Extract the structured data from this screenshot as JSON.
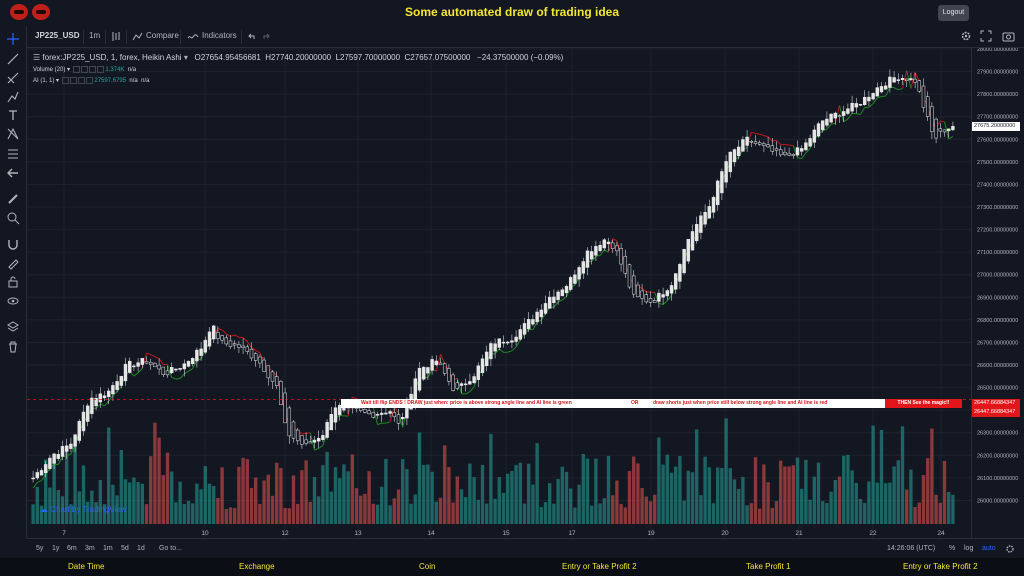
{
  "app": {
    "title": "Some automated draw of trading idea",
    "logout_label": "Logout"
  },
  "toolbar": {
    "symbol": "JP225_USD",
    "interval": "1m",
    "compare_label": "Compare",
    "indicators_label": "Indicators"
  },
  "legend": {
    "main": "forex:JP225_USD, 1, forex, Heikin Ashi",
    "open": "O27654.95456681",
    "high": "H27740.20000000",
    "low": "L27597.70000000",
    "close": "C27657.07500000",
    "change": "−24.37500000 (−0.09%)",
    "volume_label": "Volume (20)",
    "volume_value": "1.374K",
    "volume_na": "n/a",
    "ai_label": "AI (1, 1)",
    "ai_value": "27597.6795",
    "ai_na1": "n/a",
    "ai_na2": "n/a"
  },
  "banner": {
    "part1": "Wait till flip ENDS !  DRAW just when:  price is above strong angle line and AI line is green",
    "part2": "OR",
    "part3": "draw shorts just when price still below strong angle line and AI line is red",
    "part4": "THEN See the magic!!"
  },
  "price_tags": {
    "current": "27675.20000000",
    "line1": "26447.66884347",
    "line2": "26447.66884347"
  },
  "watermark": "Chart by TradingView",
  "bottom": {
    "ranges": [
      "5y",
      "1y",
      "6m",
      "3m",
      "1m",
      "5d",
      "1d"
    ],
    "goto": "Go to...",
    "time": "14:26:06 (UTC)",
    "pct": "%",
    "log": "log",
    "auto": "auto"
  },
  "footer": [
    "Date Time",
    "Exchange",
    "Coin",
    "Entry or Take Profit 2",
    "Take Profit 1",
    "Entry or Take Profit 2"
  ],
  "colors": {
    "up": "#26a69a",
    "down": "#ef5350",
    "ai_green": "#1e8a22",
    "ai_red": "#c0181e",
    "title_yellow": "#f5e633"
  },
  "chart_data": {
    "type": "candlestick",
    "chart_style": "Heikin Ashi",
    "ylim": [
      25940,
      28000
    ],
    "y_ticks": [
      26000,
      26100,
      26200,
      26300,
      26400,
      26500,
      26600,
      26700,
      26800,
      26900,
      27000,
      27100,
      27200,
      27300,
      27400,
      27500,
      27600,
      27700,
      27800,
      27900,
      28000
    ],
    "y_tick_labels": [
      "26000.00000000",
      "26100.00000000",
      "26200.00000000",
      "26300.00000000",
      "26400.00000000",
      "26500.00000000",
      "26600.00000000",
      "26700.00000000",
      "26800.00000000",
      "26900.00000000",
      "27000.00000000",
      "27100.00000000",
      "27200.00000000",
      "27300.00000000",
      "27400.00000000",
      "27500.00000000",
      "27600.00000000",
      "27700.00000000",
      "27800.00000000",
      "27900.00000000",
      "28000.00000000"
    ],
    "x_tick_labels": [
      "7",
      "10",
      "12",
      "13",
      "14",
      "15",
      "17",
      "19",
      "20",
      "21",
      "22",
      "24"
    ],
    "price_path": [
      [
        0,
        26100
      ],
      [
        2,
        26200
      ],
      [
        4,
        26250
      ],
      [
        6,
        26450
      ],
      [
        8,
        26480
      ],
      [
        10,
        26600
      ],
      [
        12,
        26620
      ],
      [
        14,
        26560
      ],
      [
        16,
        26600
      ],
      [
        18,
        26680
      ],
      [
        19,
        26780
      ],
      [
        20,
        26700
      ],
      [
        22,
        26680
      ],
      [
        24,
        26620
      ],
      [
        26,
        26500
      ],
      [
        27,
        26300
      ],
      [
        29,
        26240
      ],
      [
        31,
        26300
      ],
      [
        32,
        26420
      ],
      [
        34,
        26400
      ],
      [
        36,
        26380
      ],
      [
        38,
        26400
      ],
      [
        39,
        26330
      ],
      [
        40,
        26450
      ],
      [
        41,
        26580
      ],
      [
        43,
        26620
      ],
      [
        45,
        26480
      ],
      [
        47,
        26560
      ],
      [
        49,
        26700
      ],
      [
        51,
        26720
      ],
      [
        53,
        26800
      ],
      [
        55,
        26900
      ],
      [
        57,
        26960
      ],
      [
        59,
        27100
      ],
      [
        61,
        27160
      ],
      [
        62,
        27120
      ],
      [
        64,
        26900
      ],
      [
        66,
        26880
      ],
      [
        68,
        26960
      ],
      [
        70,
        27180
      ],
      [
        72,
        27300
      ],
      [
        74,
        27520
      ],
      [
        76,
        27600
      ],
      [
        78,
        27560
      ],
      [
        80,
        27520
      ],
      [
        82,
        27560
      ],
      [
        84,
        27680
      ],
      [
        86,
        27720
      ],
      [
        88,
        27760
      ],
      [
        90,
        27830
      ],
      [
        92,
        27880
      ],
      [
        94,
        27860
      ],
      [
        96,
        27600
      ],
      [
        97,
        27640
      ],
      [
        98,
        27660
      ]
    ],
    "signal_level": 26447.66884347,
    "current_price": 27675.2
  }
}
